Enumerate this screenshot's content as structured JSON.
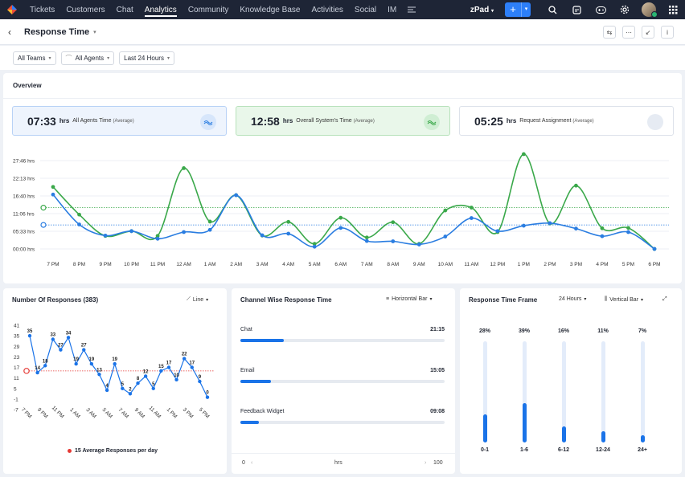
{
  "nav": {
    "items": [
      "Tickets",
      "Customers",
      "Chat",
      "Analytics",
      "Community",
      "Knowledge Base",
      "Activities",
      "Social",
      "IM"
    ],
    "active": "Analytics",
    "workspace": "zPad",
    "plus": "+"
  },
  "header": {
    "back": "‹",
    "title": "Response Time"
  },
  "filters": {
    "teams": "All Teams",
    "agents": "All Agents",
    "range": "Last 24 Hours"
  },
  "overview": {
    "title": "Overview",
    "cards": [
      {
        "value": "07:33",
        "unit": "hrs",
        "label": "All Agents Time",
        "sub": "(Average)"
      },
      {
        "value": "12:58",
        "unit": "hrs",
        "label": "Overall System's Time",
        "sub": "(Average)"
      },
      {
        "value": "05:25",
        "unit": "hrs",
        "label": "Request Assignment",
        "sub": "(Average)"
      }
    ],
    "chart_data": {
      "type": "line",
      "categories": [
        "7 PM",
        "8 PM",
        "9 PM",
        "10 PM",
        "11 PM",
        "12 AM",
        "1 AM",
        "2 AM",
        "3 AM",
        "4 AM",
        "5 AM",
        "6 AM",
        "7 AM",
        "8 AM",
        "9 AM",
        "10 AM",
        "11 AM",
        "12 PM",
        "1 PM",
        "2 PM",
        "3 PM",
        "4 PM",
        "5 PM",
        "6 PM"
      ],
      "yticks": [
        "27:46 hrs",
        "22:13 hrs",
        "16:40 hrs",
        "11:06 hrs",
        "05:33 hrs",
        "00:00 hrs"
      ],
      "ylim": [
        0,
        27.77
      ],
      "series": [
        {
          "color": "#3aa84a",
          "values": [
            19.5,
            10.8,
            4.1,
            5.6,
            4.1,
            25.4,
            8.6,
            16.9,
            4.2,
            8.5,
            1.6,
            9.8,
            3.6,
            8.4,
            1.6,
            12.1,
            13.0,
            5.3,
            29.8,
            8.0,
            19.9,
            6.5,
            6.6,
            0
          ]
        },
        {
          "color": "#2a7de1",
          "values": [
            17.1,
            7.7,
            4.2,
            5.6,
            3.2,
            5.3,
            6.0,
            16.9,
            4.3,
            4.8,
            0.7,
            6.6,
            2.5,
            2.4,
            1.4,
            3.9,
            9.7,
            5.6,
            7.3,
            8.1,
            6.4,
            4.0,
            5.3,
            0
          ]
        }
      ],
      "avg_lines": [
        {
          "color": "#3aa84a",
          "value": 12.97
        },
        {
          "color": "#2a7de1",
          "value": 7.55
        }
      ]
    }
  },
  "responses": {
    "title": "Number Of Responses (383)",
    "control": "Line",
    "avg_label": "15 Average Responses per day",
    "chart_data": {
      "type": "line",
      "yticks": [
        "41",
        "35",
        "29",
        "23",
        "17",
        "11",
        "5",
        "-1",
        "-7"
      ],
      "ylim": [
        -7,
        41
      ],
      "xticks": [
        "7 PM",
        "9 PM",
        "11 PM",
        "1 AM",
        "3 AM",
        "5 AM",
        "7 AM",
        "9 AM",
        "11 AM",
        "1 PM",
        "3 PM",
        "5 PM"
      ],
      "values": [
        35,
        14,
        18,
        33,
        27,
        34,
        19,
        27,
        19,
        13,
        4,
        19,
        5,
        2,
        8,
        12,
        5,
        15,
        17,
        10,
        22,
        17,
        9,
        0
      ],
      "labels": [
        "35",
        "14",
        "18",
        "33",
        "27",
        "34",
        "19",
        "27",
        "19",
        "13",
        "4",
        "19",
        "5",
        "2",
        "8",
        "12",
        "5",
        "15",
        "17",
        "10",
        "22",
        "17",
        "9",
        "0"
      ],
      "average": 15,
      "color": "#1a73e8"
    }
  },
  "channels": {
    "title": "Channel Wise Response Time",
    "control": "Horizontal Bar",
    "axis_min": "0",
    "axis_unit": "hrs",
    "axis_max": "100",
    "chart_data": {
      "type": "bar",
      "categories": [
        "Chat",
        "Email",
        "Feedback Widget"
      ],
      "labels": [
        "21:15",
        "15:05",
        "09:08"
      ],
      "values": [
        21.25,
        15.08,
        9.13
      ],
      "xlim": [
        0,
        100
      ]
    }
  },
  "timeframe": {
    "title": "Response Time Frame",
    "control1": "24 Hours",
    "control2": "Vertical Bar",
    "chart_data": {
      "type": "bar",
      "categories": [
        "0-1",
        "1-6",
        "6-12",
        "12-24",
        "24+"
      ],
      "labels": [
        "28%",
        "39%",
        "16%",
        "11%",
        "7%"
      ],
      "values": [
        28,
        39,
        16,
        11,
        7
      ],
      "ylim": [
        0,
        100
      ]
    }
  }
}
